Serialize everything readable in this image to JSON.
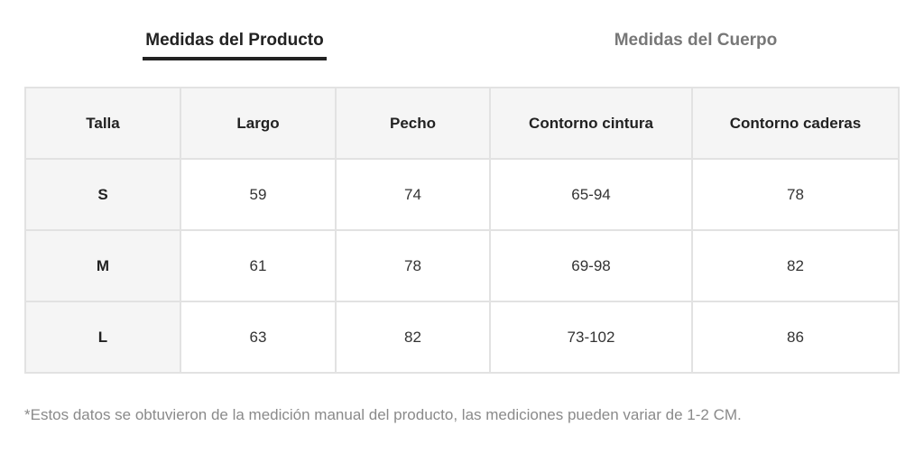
{
  "tabs": [
    "Medidas del Producto",
    "Medidas del Cuerpo"
  ],
  "table": {
    "header": [
      "Talla",
      "Largo",
      "Pecho",
      "Contorno cintura",
      "Contorno caderas"
    ],
    "rows": [
      [
        "S",
        59,
        74,
        "65-94",
        78
      ],
      [
        "M",
        61,
        78,
        "69-98",
        82
      ],
      [
        "L",
        63,
        82,
        "73-102",
        86
      ]
    ]
  },
  "footnote": "*Estos datos se obtuvieron de la medición manual del producto, las mediciones pueden variar de 1-2 CM."
}
